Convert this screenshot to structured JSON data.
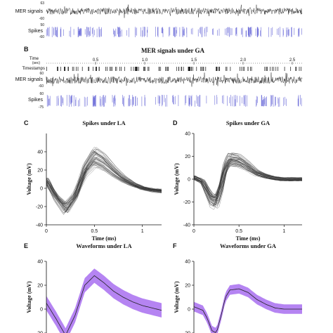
{
  "colors": {
    "signal": "#1a1a1a",
    "spike": "#6b6bd8",
    "band": "#a86ef0",
    "mean": "#222222",
    "trace": "#333333"
  },
  "panel_a": {
    "track_labels": [
      "MER signals",
      "Spikes"
    ],
    "mer_ticks": [
      "63",
      "-60"
    ],
    "spike_ticks": [
      "50",
      "-60"
    ]
  },
  "panel_b": {
    "letter": "B",
    "title": "MER signals under GA",
    "time_label": "Time",
    "time_unit": "(sec)",
    "timestamps_label": "Timestamps",
    "track_labels": [
      "MER signals",
      "Spikes"
    ],
    "time_ticks": [
      "0.5",
      "1.0",
      "1.5",
      "2.0",
      "2.5"
    ],
    "mer_ticks": [
      "60",
      "-60"
    ],
    "spike_ticks": [
      "60",
      "-75"
    ]
  },
  "chart_data": [
    {
      "panel": "C",
      "type": "line",
      "title": "Spikes under LA",
      "xlabel": "Time (ms)",
      "ylabel": "Voltage (mV)",
      "xlim": [
        0,
        1.2
      ],
      "ylim": [
        -40,
        60
      ],
      "xticks": [
        "0",
        "0.5",
        "1"
      ],
      "yticks": [
        "-40",
        "-20",
        "0",
        "20",
        "40"
      ],
      "series": [
        {
          "x": [
            0,
            0.1,
            0.2,
            0.3,
            0.4,
            0.5,
            0.6,
            0.7,
            0.8,
            0.9,
            1.0,
            1.1,
            1.2
          ],
          "values": [
            8,
            -10,
            -22,
            -8,
            20,
            34,
            28,
            18,
            10,
            4,
            0,
            -2,
            -3
          ]
        }
      ]
    },
    {
      "panel": "D",
      "type": "line",
      "title": "Spikes under GA",
      "xlabel": "Time (ms)",
      "ylabel": "Voltage (mV)",
      "xlim": [
        0,
        1.2
      ],
      "ylim": [
        -40,
        40
      ],
      "xticks": [
        "0",
        "0.5",
        "1"
      ],
      "yticks": [
        "-40",
        "-20",
        "0",
        "20",
        "40"
      ],
      "series": [
        {
          "x": [
            0,
            0.1,
            0.15,
            0.2,
            0.25,
            0.3,
            0.35,
            0.4,
            0.5,
            0.6,
            0.7,
            0.8,
            0.9,
            1.0,
            1.2
          ],
          "values": [
            2,
            -2,
            -10,
            -18,
            -20,
            -8,
            10,
            18,
            17,
            12,
            6,
            3,
            1,
            0,
            0
          ]
        }
      ]
    },
    {
      "panel": "E",
      "type": "area",
      "title": "Waveforms under LA",
      "xlabel": "",
      "ylabel": "Voltage (mV)",
      "xlim": [
        0,
        1.2
      ],
      "ylim": [
        -20,
        40
      ],
      "yticks": [
        "-20",
        "0",
        "20",
        "40"
      ],
      "series": [
        {
          "x": [
            0,
            0.1,
            0.2,
            0.3,
            0.4,
            0.5,
            0.6,
            0.7,
            0.8,
            0.9,
            1.0,
            1.1,
            1.2
          ],
          "values": [
            5,
            -8,
            -22,
            -5,
            20,
            28,
            22,
            15,
            10,
            6,
            3,
            1,
            -1
          ],
          "band": 6
        }
      ]
    },
    {
      "panel": "F",
      "type": "area",
      "title": "Waveforms under GA",
      "xlabel": "",
      "ylabel": "Voltage (mV)",
      "xlim": [
        0,
        1.2
      ],
      "ylim": [
        -20,
        40
      ],
      "yticks": [
        "-20",
        "0",
        "20",
        "40"
      ],
      "series": [
        {
          "x": [
            0,
            0.1,
            0.15,
            0.2,
            0.25,
            0.3,
            0.35,
            0.4,
            0.5,
            0.6,
            0.7,
            0.8,
            0.9,
            1.0,
            1.2
          ],
          "values": [
            2,
            -1,
            -8,
            -18,
            -20,
            -6,
            10,
            16,
            17,
            14,
            8,
            4,
            1,
            0,
            0
          ],
          "band": 4
        }
      ]
    }
  ]
}
